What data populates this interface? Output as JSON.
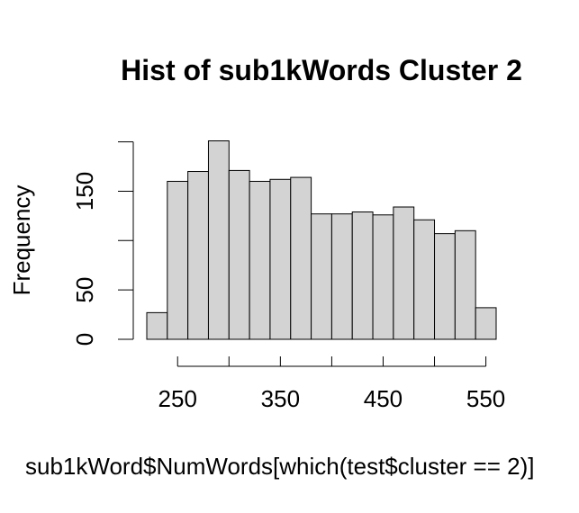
{
  "chart_data": {
    "type": "bar",
    "title": "Hist of sub1kWords Cluster 2",
    "xlabel": "sub1kWord$NumWords[which(test$cluster == 2)]",
    "ylabel": "Frequency",
    "bin_width": 20,
    "bins": [
      {
        "x0": 220,
        "x1": 240,
        "count": 27
      },
      {
        "x0": 240,
        "x1": 260,
        "count": 160
      },
      {
        "x0": 260,
        "x1": 280,
        "count": 170
      },
      {
        "x0": 280,
        "x1": 300,
        "count": 201
      },
      {
        "x0": 300,
        "x1": 320,
        "count": 171
      },
      {
        "x0": 320,
        "x1": 340,
        "count": 160
      },
      {
        "x0": 340,
        "x1": 360,
        "count": 162
      },
      {
        "x0": 360,
        "x1": 380,
        "count": 164
      },
      {
        "x0": 380,
        "x1": 400,
        "count": 127
      },
      {
        "x0": 400,
        "x1": 420,
        "count": 127
      },
      {
        "x0": 420,
        "x1": 440,
        "count": 129
      },
      {
        "x0": 440,
        "x1": 460,
        "count": 126
      },
      {
        "x0": 460,
        "x1": 480,
        "count": 134
      },
      {
        "x0": 480,
        "x1": 500,
        "count": 121
      },
      {
        "x0": 500,
        "x1": 520,
        "count": 107
      },
      {
        "x0": 520,
        "x1": 540,
        "count": 110
      },
      {
        "x0": 540,
        "x1": 560,
        "count": 32
      }
    ],
    "xticks": [
      250,
      300,
      350,
      400,
      450,
      500,
      550
    ],
    "xtick_labels": [
      "250",
      "350",
      "450",
      "550"
    ],
    "yticks": [
      0,
      50,
      100,
      150,
      200
    ],
    "ytick_labels": [
      "0",
      "50",
      "150"
    ],
    "xlim": [
      220,
      560
    ],
    "ylim": [
      0,
      201
    ],
    "grid": false
  }
}
